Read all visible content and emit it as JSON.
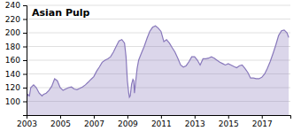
{
  "chart_data": {
    "type": "area",
    "title": "Asian Pulp",
    "color": "#8878BB",
    "grid": true,
    "xlim": [
      2003,
      2018.7
    ],
    "ylim": [
      80,
      240
    ],
    "xticks": [
      2003,
      2005,
      2007,
      2009,
      2011,
      2013,
      2015,
      2017
    ],
    "yticks": [
      100,
      120,
      140,
      160,
      180,
      200,
      220,
      240
    ],
    "x": [
      2003.0,
      2003.08,
      2003.17,
      2003.25,
      2003.42,
      2003.58,
      2003.75,
      2003.92,
      2004.0,
      2004.17,
      2004.33,
      2004.5,
      2004.67,
      2004.83,
      2005.0,
      2005.17,
      2005.33,
      2005.5,
      2005.67,
      2005.83,
      2006.0,
      2006.17,
      2006.33,
      2006.5,
      2006.67,
      2006.83,
      2007.0,
      2007.17,
      2007.33,
      2007.5,
      2007.67,
      2007.83,
      2008.0,
      2008.17,
      2008.33,
      2008.5,
      2008.67,
      2008.83,
      2008.92,
      2009.0,
      2009.08,
      2009.12,
      2009.17,
      2009.25,
      2009.33,
      2009.38,
      2009.42,
      2009.5,
      2009.58,
      2009.67,
      2009.83,
      2010.0,
      2010.17,
      2010.33,
      2010.5,
      2010.67,
      2010.83,
      2011.0,
      2011.08,
      2011.17,
      2011.33,
      2011.5,
      2011.67,
      2011.83,
      2012.0,
      2012.17,
      2012.33,
      2012.5,
      2012.67,
      2012.83,
      2013.0,
      2013.17,
      2013.33,
      2013.5,
      2013.67,
      2013.83,
      2014.0,
      2014.17,
      2014.33,
      2014.5,
      2014.67,
      2014.83,
      2015.0,
      2015.17,
      2015.33,
      2015.5,
      2015.67,
      2015.83,
      2016.0,
      2016.17,
      2016.33,
      2016.5,
      2016.67,
      2016.83,
      2017.0,
      2017.17,
      2017.33,
      2017.5,
      2017.67,
      2017.83,
      2018.0,
      2018.17,
      2018.33,
      2018.5,
      2018.6
    ],
    "values": [
      105,
      110,
      108,
      120,
      124,
      120,
      112,
      108,
      110,
      112,
      116,
      122,
      133,
      130,
      120,
      116,
      118,
      120,
      121,
      118,
      117,
      119,
      121,
      124,
      128,
      132,
      136,
      144,
      150,
      157,
      160,
      162,
      165,
      172,
      180,
      188,
      190,
      185,
      165,
      130,
      112,
      106,
      108,
      125,
      132,
      130,
      112,
      130,
      148,
      160,
      170,
      180,
      192,
      202,
      208,
      210,
      207,
      202,
      195,
      187,
      190,
      185,
      178,
      172,
      163,
      153,
      150,
      152,
      158,
      165,
      165,
      160,
      153,
      162,
      162,
      163,
      165,
      163,
      160,
      157,
      155,
      153,
      155,
      153,
      151,
      149,
      152,
      153,
      148,
      142,
      134,
      134,
      133,
      133,
      135,
      140,
      148,
      158,
      170,
      182,
      196,
      203,
      204,
      200,
      193
    ]
  }
}
